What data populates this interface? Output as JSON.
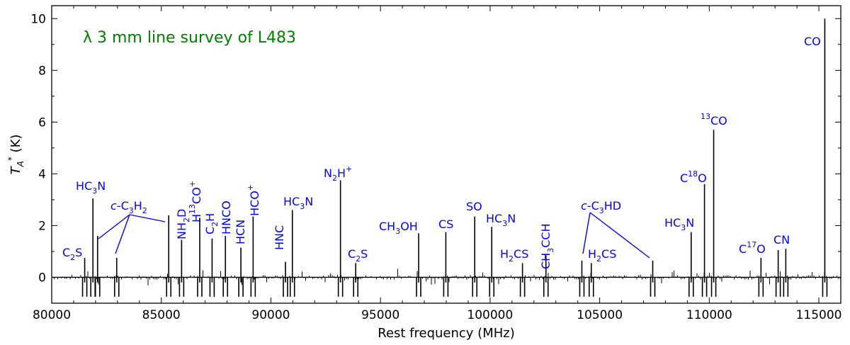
{
  "chart_data": {
    "type": "line",
    "title": "λ 3 mm line survey of L483",
    "title_color": "#008000",
    "label_color": "#0000ff",
    "trace_color": "#000000",
    "xlabel": "Rest frequency (MHz)",
    "ylabel": "T*_A (K)",
    "xlim": [
      80000,
      116000
    ],
    "ylim": [
      -1.0,
      10.5
    ],
    "x_ticks": [
      80000,
      85000,
      90000,
      95000,
      100000,
      105000,
      110000,
      115000
    ],
    "y_ticks": [
      0,
      2,
      4,
      6,
      8,
      10
    ],
    "lines": [
      {
        "x": 81505,
        "y": 0.75,
        "label": "C2S"
      },
      {
        "x": 81881,
        "y": 3.05,
        "label": "HC3N"
      },
      {
        "x": 82093,
        "y": 1.6,
        "label": "c-C3H2"
      },
      {
        "x": 82966,
        "y": 0.75,
        "label": "c-C3H2"
      },
      {
        "x": 85339,
        "y": 2.4,
        "label": "c-C3H2"
      },
      {
        "x": 85926,
        "y": 1.45,
        "label": "NH2D"
      },
      {
        "x": 86754,
        "y": 2.3,
        "label": "H13CO+"
      },
      {
        "x": 87317,
        "y": 1.5,
        "label": "C2H"
      },
      {
        "x": 87925,
        "y": 1.6,
        "label": "HNCO"
      },
      {
        "x": 88632,
        "y": 1.15,
        "label": "HCN"
      },
      {
        "x": 89189,
        "y": 2.35,
        "label": "HCO+"
      },
      {
        "x": 90664,
        "y": 0.6,
        "label": "HNC"
      },
      {
        "x": 90979,
        "y": 2.6,
        "label": "HC3N"
      },
      {
        "x": 93174,
        "y": 3.75,
        "label": "N2H+"
      },
      {
        "x": 93870,
        "y": 0.55,
        "label": "C2S"
      },
      {
        "x": 96741,
        "y": 1.7,
        "label": "CH3OH"
      },
      {
        "x": 97981,
        "y": 1.75,
        "label": "CS"
      },
      {
        "x": 99300,
        "y": 2.35,
        "label": "SO"
      },
      {
        "x": 100076,
        "y": 1.95,
        "label": "HC3N"
      },
      {
        "x": 101478,
        "y": 0.55,
        "label": "H2CS"
      },
      {
        "x": 102548,
        "y": 0.85,
        "label": "CH3CCH"
      },
      {
        "x": 104187,
        "y": 0.65,
        "label": "c-C3HD"
      },
      {
        "x": 104617,
        "y": 0.55,
        "label": "H2CS"
      },
      {
        "x": 107420,
        "y": 0.65,
        "label": "c-C3HD"
      },
      {
        "x": 109174,
        "y": 1.75,
        "label": "HC3N"
      },
      {
        "x": 109782,
        "y": 3.6,
        "label": "C18O"
      },
      {
        "x": 110201,
        "y": 5.7,
        "label": "13CO"
      },
      {
        "x": 112359,
        "y": 0.75,
        "label": "C17O"
      },
      {
        "x": 113144,
        "y": 1.05,
        "label": "CN"
      },
      {
        "x": 113491,
        "y": 1.1,
        "label": "CN"
      },
      {
        "x": 115271,
        "y": 10.0,
        "label": "CO"
      }
    ],
    "labels": {
      "C2S": "C2S",
      "HC3N": "HC3N",
      "cC3H2": "c-C3H2",
      "NH2D": "NH2D",
      "H13COp": "H13CO+",
      "C2H": "C2H",
      "HNCO": "HNCO",
      "HCN": "HCN",
      "HCOp": "HCO+",
      "HNC": "HNC",
      "N2Hp": "N2H+",
      "CH3OH": "CH3OH",
      "CS": "CS",
      "SO": "SO",
      "H2CS": "H2CS",
      "CH3CCH": "CH3CCH",
      "cC3HD": "c-C3HD",
      "C18O": "C18O",
      "13CO": "13CO",
      "C17O": "C17O",
      "CN": "CN",
      "CO": "CO"
    }
  }
}
